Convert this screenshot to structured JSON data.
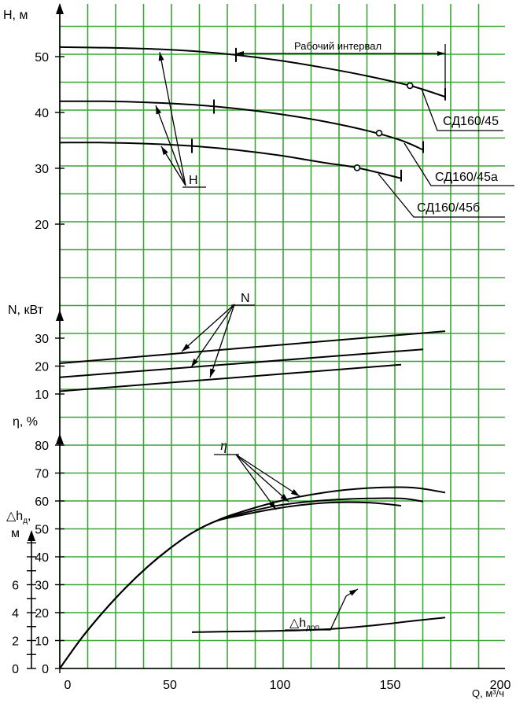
{
  "chart_data": {
    "type": "line",
    "x_axis": {
      "label": "Q, м³/ч",
      "ticks": [
        0,
        50,
        100,
        150,
        200
      ],
      "range": [
        0,
        200
      ]
    },
    "panels": {
      "head": {
        "axis_label": "H, м",
        "ticks": [
          20,
          30,
          40,
          50
        ],
        "range": [
          16,
          56
        ],
        "curve_label": "H",
        "series": [
          {
            "name": "СД160/45",
            "x": [
              0,
              20,
              40,
              60,
              80,
              100,
              120,
              140,
              160,
              175
            ],
            "y": [
              51.7,
              51.6,
              51.4,
              51,
              50.3,
              49.3,
              48,
              46.5,
              44.7,
              42.8
            ],
            "op_point": [
              159,
              44.8
            ],
            "interval": [
              80,
              175
            ]
          },
          {
            "name": "СД160/45а",
            "x": [
              0,
              20,
              40,
              60,
              80,
              100,
              120,
              140,
              155,
              165
            ],
            "y": [
              42,
              42,
              41.8,
              41.4,
              40.7,
              39.7,
              38.4,
              36.7,
              35,
              33.3
            ],
            "op_point": [
              145,
              36.3
            ],
            "interval": [
              70,
              165
            ]
          },
          {
            "name": "СД160/45б",
            "x": [
              0,
              20,
              40,
              60,
              80,
              100,
              120,
              135,
              155
            ],
            "y": [
              34.6,
              34.6,
              34.4,
              34,
              33.3,
              32.3,
              31,
              30.1,
              28.2
            ],
            "op_point": [
              135,
              30.1
            ],
            "interval": [
              60,
              155
            ]
          }
        ],
        "interval_label": "Рабочий интервал"
      },
      "power": {
        "axis_label": "N, кВт",
        "ticks": [
          10,
          20,
          30
        ],
        "range": [
          6,
          43
        ],
        "curve_label": "N",
        "series": [
          {
            "name": "СД160/45",
            "x": [
              0,
              175
            ],
            "y": [
              21,
              32.5
            ]
          },
          {
            "name": "СД160/45а",
            "x": [
              0,
              165
            ],
            "y": [
              16,
              26
            ]
          },
          {
            "name": "СД160/45б",
            "x": [
              0,
              155
            ],
            "y": [
              11,
              20.5
            ]
          }
        ]
      },
      "efficiency": {
        "axis_label": "η, %",
        "ticks": [
          0,
          10,
          20,
          30,
          40,
          50,
          60,
          70,
          80
        ],
        "range": [
          0,
          80
        ],
        "curve_label": "η",
        "series": [
          {
            "name": "СД160/45",
            "x": [
              0,
              10,
              20,
              30,
              40,
              50,
              60,
              70,
              80,
              100,
              120,
              140,
              160,
              175
            ],
            "y": [
              0,
              11,
              20.5,
              29,
              36.5,
              43,
              48.5,
              52.5,
              55.5,
              60,
              63,
              64.6,
              64.8,
              63
            ]
          },
          {
            "name": "СД160/45а",
            "x": [
              0,
              10,
              20,
              30,
              40,
              50,
              60,
              70,
              80,
              100,
              120,
              140,
              155,
              165
            ],
            "y": [
              0,
              11,
              20.5,
              29,
              36.5,
              43,
              48.5,
              52.5,
              55,
              58.5,
              60.2,
              60.9,
              60.9,
              59.8
            ]
          },
          {
            "name": "СД160/45б",
            "x": [
              0,
              10,
              20,
              30,
              40,
              50,
              60,
              70,
              80,
              100,
              120,
              140,
              155
            ],
            "y": [
              0,
              11,
              20.5,
              29,
              36.5,
              43,
              48.5,
              52.5,
              54.5,
              57.5,
              59.3,
              59.4,
              58.3
            ]
          }
        ]
      },
      "npsh": {
        "axis_label_main": "△h",
        "axis_label_sub": "д",
        "axis_unit": "м",
        "ticks": [
          0,
          2,
          4,
          6
        ],
        "range": [
          0,
          9
        ],
        "curve_label_main": "△h",
        "curve_label_sub": "доп",
        "series": [
          {
            "name": "△hдоп",
            "x": [
              60,
              80,
              100,
              120,
              140,
              160,
              175
            ],
            "y": [
              2.6,
              2.65,
              2.7,
              2.8,
              3.05,
              3.4,
              3.65
            ]
          }
        ]
      }
    },
    "grid": true
  }
}
